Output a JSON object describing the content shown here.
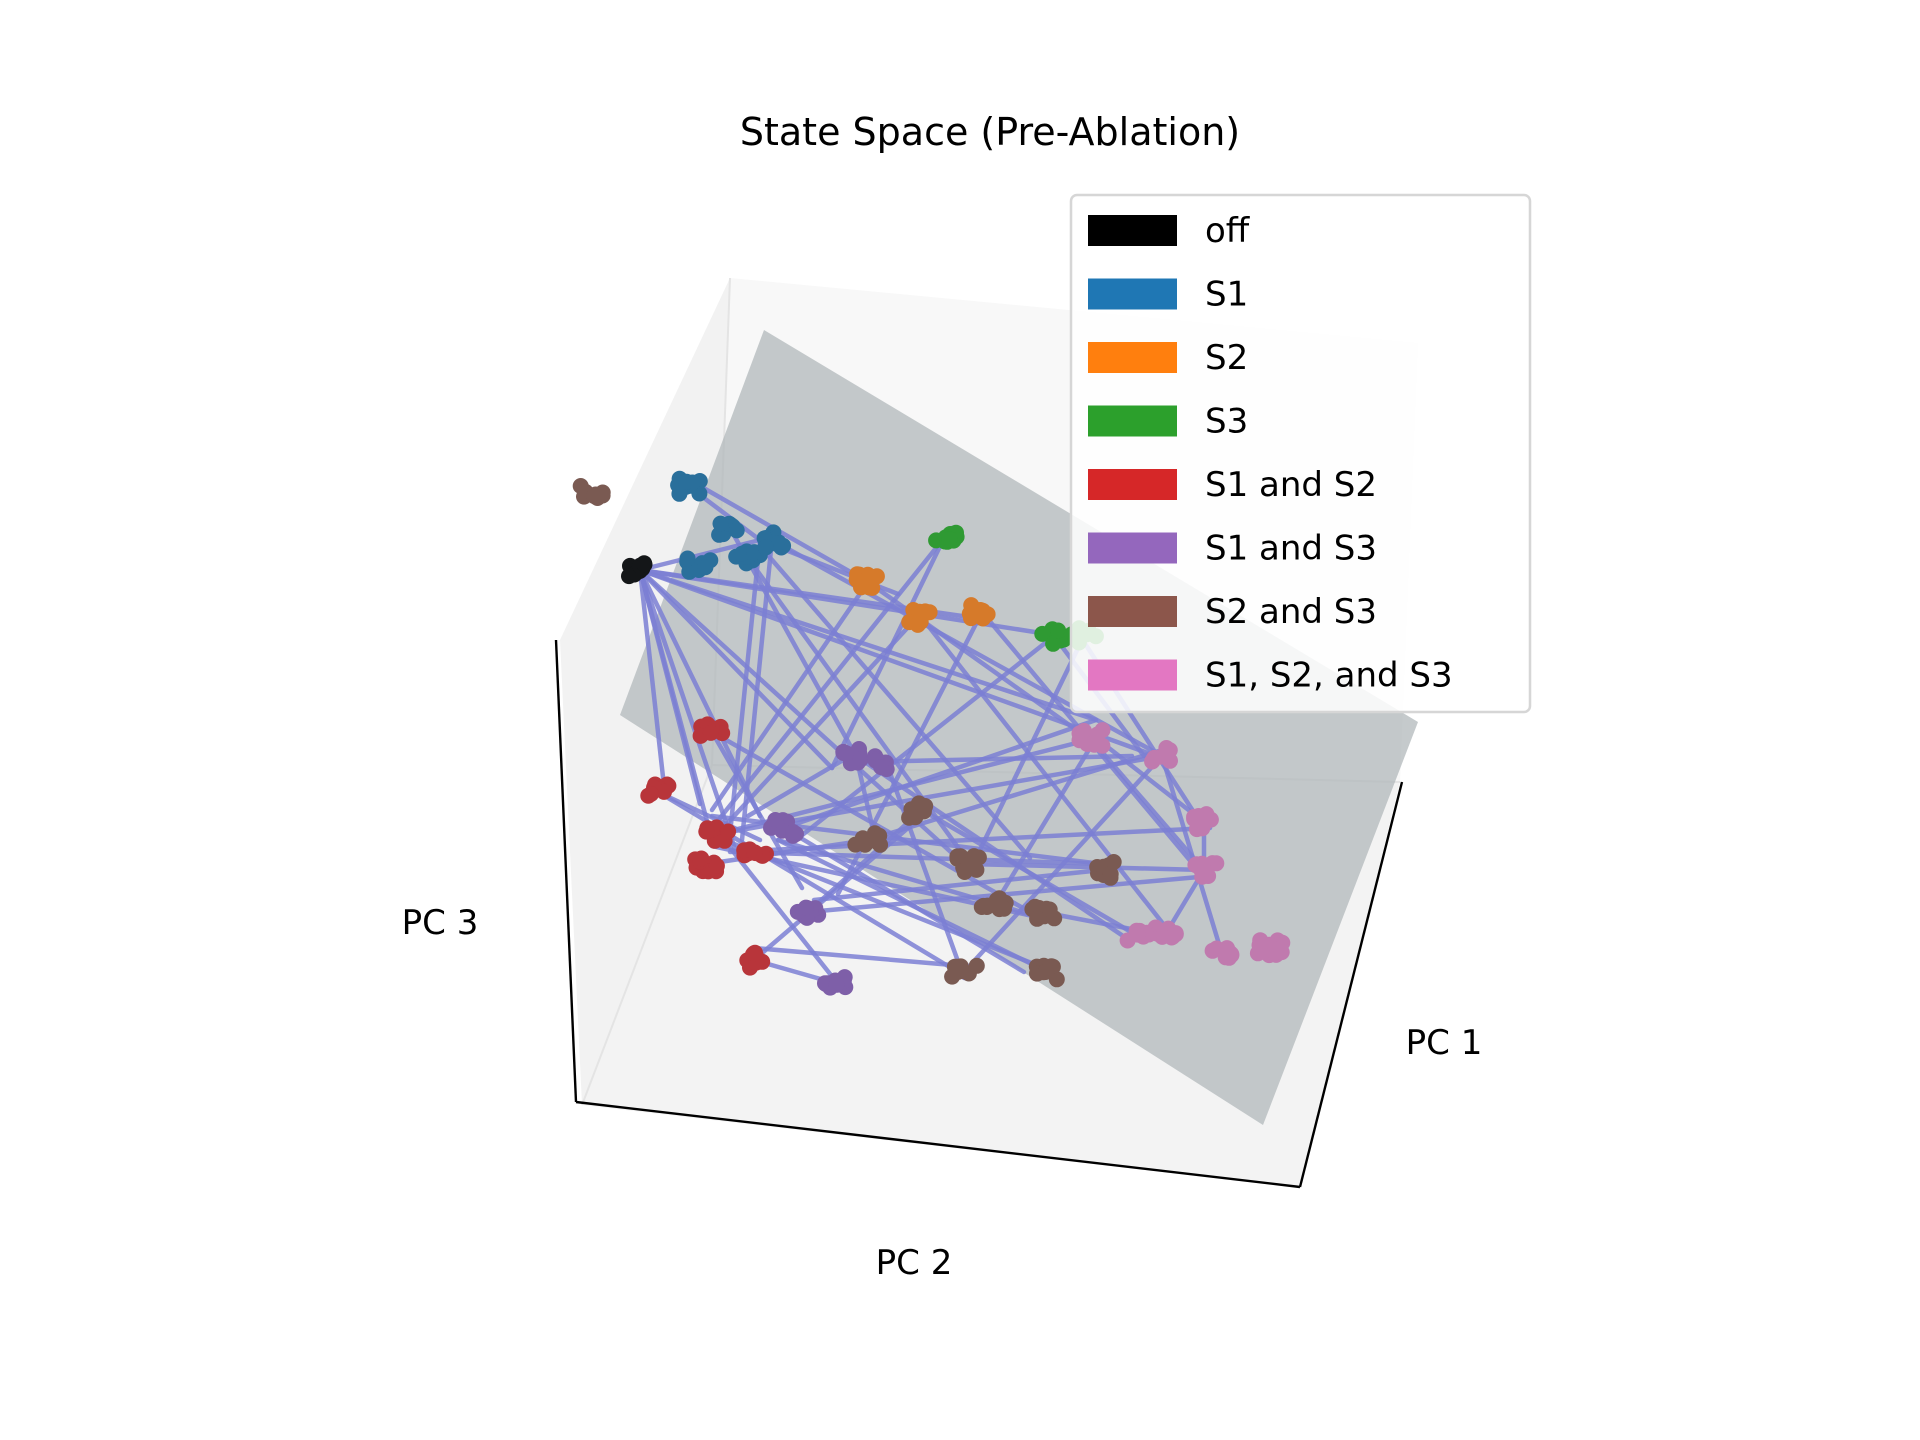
{
  "chart_data": {
    "type": "scatter",
    "projection": "3d",
    "title": "State Space (Pre-Ablation)",
    "xlabel": "PC 1",
    "ylabel": "PC 2",
    "zlabel": "PC 3",
    "grid": false,
    "legend_position": "upper-right",
    "fitted_plane_color": "#aeb6b8",
    "trajectory_color": "#7b7fd4",
    "series": [
      {
        "name": "off",
        "color": "#000000",
        "cluster_color": "#141618",
        "points": [
          [
            0.1,
            0.55
          ]
        ]
      },
      {
        "name": "S1",
        "color": "#1f77b4",
        "cluster_color": "#2a6f9b",
        "points": [
          [
            0.18,
            0.69
          ],
          [
            0.25,
            0.62
          ],
          [
            0.28,
            0.57
          ],
          [
            0.32,
            0.6
          ],
          [
            0.2,
            0.56
          ]
        ]
      },
      {
        "name": "S2",
        "color": "#ff7f0e",
        "cluster_color": "#d67a2a",
        "points": [
          [
            0.48,
            0.53
          ],
          [
            0.57,
            0.47
          ],
          [
            0.67,
            0.48
          ]
        ]
      },
      {
        "name": "S3",
        "color": "#2ca02c",
        "cluster_color": "#2f9a33",
        "points": [
          [
            0.61,
            0.61
          ],
          [
            0.79,
            0.44
          ],
          [
            0.84,
            0.44
          ]
        ]
      },
      {
        "name": "S1 and S2",
        "color": "#d62728",
        "cluster_color": "#b8353a",
        "points": [
          [
            0.22,
            0.28
          ],
          [
            0.13,
            0.18
          ],
          [
            0.21,
            0.06
          ],
          [
            0.29,
            0.08
          ],
          [
            0.23,
            0.11
          ],
          [
            0.29,
            -0.1
          ]
        ]
      },
      {
        "name": "S1 and S3",
        "color": "#9467bd",
        "cluster_color": "#7e5fa8",
        "points": [
          [
            0.34,
            0.12
          ],
          [
            0.46,
            0.24
          ],
          [
            0.51,
            0.23
          ],
          [
            0.38,
            -0.02
          ],
          [
            0.43,
            -0.14
          ]
        ]
      },
      {
        "name": "S2 and S3",
        "color": "#8c564b",
        "cluster_color": "#7a5a52",
        "points": [
          [
            0.48,
            0.1
          ],
          [
            0.57,
            0.15
          ],
          [
            0.65,
            0.06
          ],
          [
            0.69,
            -0.01
          ],
          [
            0.77,
            -0.02
          ],
          [
            0.87,
            0.05
          ],
          [
            0.64,
            -0.12
          ],
          [
            0.78,
            -0.12
          ],
          [
            0.02,
            0.68
          ]
        ]
      },
      {
        "name": "S1, S2, and S3",
        "color": "#e377c2",
        "cluster_color": "#c07aae",
        "points": [
          [
            0.85,
            0.27
          ],
          [
            0.97,
            0.24
          ],
          [
            1.04,
            0.13
          ],
          [
            1.04,
            0.05
          ],
          [
            0.98,
            -0.05
          ],
          [
            1.07,
            -0.09
          ],
          [
            0.93,
            -0.06
          ],
          [
            1.15,
            -0.08
          ]
        ]
      }
    ],
    "transitions": [
      [
        [
          0.1,
          0.55
        ],
        [
          0.2,
          0.16
        ]
      ],
      [
        [
          0.1,
          0.55
        ],
        [
          0.26,
          0.08
        ]
      ],
      [
        [
          0.1,
          0.55
        ],
        [
          0.14,
          0.19
        ]
      ],
      [
        [
          0.1,
          0.55
        ],
        [
          0.3,
          0.14
        ]
      ],
      [
        [
          0.1,
          0.55
        ],
        [
          0.42,
          0.22
        ]
      ],
      [
        [
          0.1,
          0.55
        ],
        [
          0.64,
          0.06
        ]
      ],
      [
        [
          0.1,
          0.55
        ],
        [
          0.86,
          0.3
        ]
      ],
      [
        [
          0.1,
          0.55
        ],
        [
          0.8,
          0.44
        ]
      ],
      [
        [
          0.1,
          0.55
        ],
        [
          0.3,
          0.6
        ]
      ],
      [
        [
          0.1,
          0.55
        ],
        [
          0.66,
          0.47
        ]
      ],
      [
        [
          0.1,
          0.55
        ],
        [
          0.96,
          0.24
        ]
      ],
      [
        [
          0.1,
          0.55
        ],
        [
          0.22,
          0.1
        ]
      ],
      [
        [
          0.18,
          0.69
        ],
        [
          0.3,
          0.6
        ]
      ],
      [
        [
          0.3,
          0.6
        ],
        [
          0.53,
          0.51
        ]
      ],
      [
        [
          0.2,
          0.69
        ],
        [
          0.48,
          0.53
        ]
      ],
      [
        [
          0.3,
          0.6
        ],
        [
          0.25,
          0.11
        ]
      ],
      [
        [
          0.25,
          0.62
        ],
        [
          0.46,
          0.24
        ]
      ],
      [
        [
          0.3,
          0.59
        ],
        [
          0.75,
          0.07
        ]
      ],
      [
        [
          0.32,
          0.6
        ],
        [
          0.97,
          0.24
        ]
      ],
      [
        [
          0.28,
          0.57
        ],
        [
          0.65,
          0.06
        ]
      ],
      [
        [
          0.32,
          0.6
        ],
        [
          0.27,
          0.1
        ]
      ],
      [
        [
          0.48,
          0.53
        ],
        [
          0.22,
          0.15
        ]
      ],
      [
        [
          0.48,
          0.53
        ],
        [
          0.86,
          0.26
        ]
      ],
      [
        [
          0.57,
          0.48
        ],
        [
          0.22,
          0.1
        ]
      ],
      [
        [
          0.57,
          0.47
        ],
        [
          0.98,
          -0.05
        ]
      ],
      [
        [
          0.62,
          0.62
        ],
        [
          0.22,
          0.12
        ]
      ],
      [
        [
          0.61,
          0.61
        ],
        [
          0.42,
          0.22
        ]
      ],
      [
        [
          0.67,
          0.48
        ],
        [
          0.43,
          0.01
        ]
      ],
      [
        [
          0.67,
          0.48
        ],
        [
          1.03,
          0.05
        ]
      ],
      [
        [
          0.79,
          0.44
        ],
        [
          0.36,
          0.1
        ]
      ],
      [
        [
          0.79,
          0.44
        ],
        [
          0.94,
          0.24
        ]
      ],
      [
        [
          0.84,
          0.43
        ],
        [
          1.04,
          0.12
        ]
      ],
      [
        [
          0.84,
          0.44
        ],
        [
          0.66,
          0.07
        ]
      ],
      [
        [
          0.22,
          0.28
        ],
        [
          0.37,
          0.02
        ]
      ],
      [
        [
          0.22,
          0.28
        ],
        [
          0.75,
          -0.02
        ]
      ],
      [
        [
          0.13,
          0.18
        ],
        [
          0.3,
          0.1
        ]
      ],
      [
        [
          0.13,
          0.18
        ],
        [
          0.63,
          -0.12
        ]
      ],
      [
        [
          0.23,
          0.11
        ],
        [
          0.86,
          0.27
        ]
      ],
      [
        [
          0.23,
          0.11
        ],
        [
          0.97,
          0.24
        ]
      ],
      [
        [
          0.27,
          0.08
        ],
        [
          0.88,
          0.06
        ]
      ],
      [
        [
          0.25,
          0.08
        ],
        [
          1.05,
          0.12
        ]
      ],
      [
        [
          0.22,
          0.09
        ],
        [
          0.77,
          -0.03
        ]
      ],
      [
        [
          0.29,
          -0.1
        ],
        [
          0.43,
          -0.14
        ]
      ],
      [
        [
          0.29,
          -0.1
        ],
        [
          0.57,
          0.14
        ]
      ],
      [
        [
          0.24,
          0.1
        ],
        [
          0.79,
          -0.12
        ]
      ],
      [
        [
          0.34,
          0.12
        ],
        [
          0.86,
          0.3
        ]
      ],
      [
        [
          0.34,
          0.12
        ],
        [
          0.74,
          -0.12
        ]
      ],
      [
        [
          0.46,
          0.24
        ],
        [
          0.49,
          0.11
        ]
      ],
      [
        [
          0.46,
          0.24
        ],
        [
          0.92,
          -0.07
        ]
      ],
      [
        [
          0.51,
          0.23
        ],
        [
          0.64,
          -0.13
        ]
      ],
      [
        [
          0.38,
          -0.02
        ],
        [
          1.05,
          0.04
        ]
      ],
      [
        [
          0.38,
          -0.02
        ],
        [
          0.57,
          0.15
        ]
      ],
      [
        [
          0.43,
          -0.14
        ],
        [
          0.24,
          0.1
        ]
      ],
      [
        [
          0.48,
          0.1
        ],
        [
          0.97,
          0.25
        ]
      ],
      [
        [
          0.57,
          0.15
        ],
        [
          0.93,
          -0.06
        ]
      ],
      [
        [
          0.65,
          0.06
        ],
        [
          1.04,
          0.05
        ]
      ],
      [
        [
          0.69,
          -0.01
        ],
        [
          0.86,
          0.27
        ]
      ],
      [
        [
          0.77,
          -0.02
        ],
        [
          0.98,
          -0.06
        ]
      ],
      [
        [
          0.87,
          0.05
        ],
        [
          0.39,
          0.0
        ]
      ],
      [
        [
          0.64,
          -0.12
        ],
        [
          0.97,
          0.24
        ]
      ],
      [
        [
          0.78,
          -0.12
        ],
        [
          0.33,
          0.1
        ]
      ],
      [
        [
          0.86,
          0.27
        ],
        [
          1.04,
          0.13
        ]
      ],
      [
        [
          0.97,
          0.24
        ],
        [
          1.07,
          -0.09
        ]
      ],
      [
        [
          1.04,
          0.13
        ],
        [
          1.04,
          0.05
        ]
      ],
      [
        [
          1.04,
          0.05
        ],
        [
          0.98,
          -0.05
        ]
      ],
      [
        [
          0.85,
          0.27
        ],
        [
          1.04,
          0.05
        ]
      ],
      [
        [
          0.29,
          -0.08
        ],
        [
          0.64,
          -0.11
        ]
      ],
      [
        [
          0.33,
          0.1
        ],
        [
          0.77,
          -0.03
        ]
      ],
      [
        [
          0.22,
          0.14
        ],
        [
          0.87,
          0.06
        ]
      ],
      [
        [
          0.47,
          0.23
        ],
        [
          0.92,
          0.24
        ]
      ],
      [
        [
          0.28,
          0.14
        ],
        [
          0.45,
          0.24
        ]
      ],
      [
        [
          0.21,
          0.06
        ],
        [
          0.48,
          0.1
        ]
      ]
    ]
  }
}
